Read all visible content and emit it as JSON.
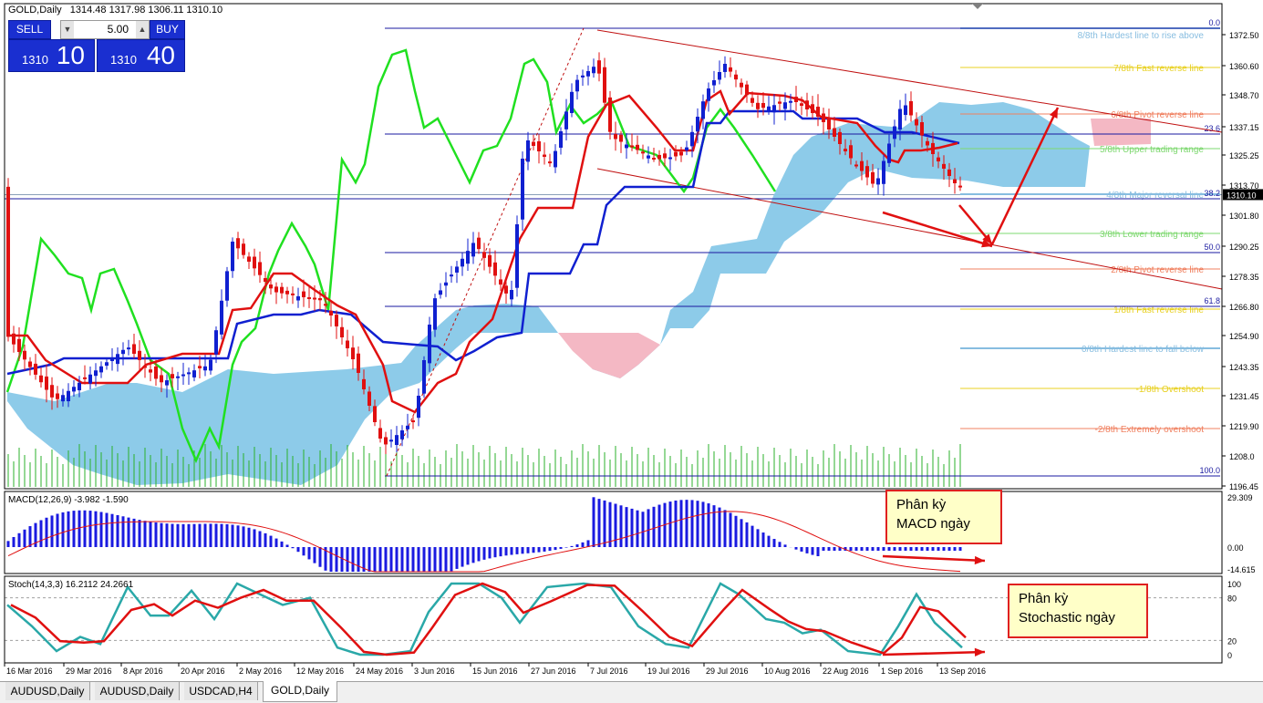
{
  "window": {
    "symbol_header": "GOLD,Daily",
    "ohlc": "1314.48 1317.98 1306.11 1310.10"
  },
  "trade_panel": {
    "sell_label": "SELL",
    "buy_label": "BUY",
    "lot_value": "5.00",
    "sell_price_small": "1310",
    "sell_price_large": "10",
    "buy_price_small": "1310",
    "buy_price_large": "40"
  },
  "price_axis": {
    "ticks": [
      "1372.50",
      "1360.60",
      "1348.70",
      "1337.15",
      "1325.25",
      "1313.70",
      "1301.80",
      "1290.25",
      "1278.35",
      "1266.80",
      "1254.90",
      "1243.35",
      "1231.45",
      "1219.90",
      "1208.0",
      "1196.45"
    ],
    "current_price": "1310.10"
  },
  "murrey": [
    {
      "label": "8/8th Hardest line to rise above",
      "color": "#87bde0"
    },
    {
      "label": "7/8th Fast reverse line",
      "color": "#e8d020"
    },
    {
      "label": "6/8th Pivot reverse line",
      "color": "#f08060"
    },
    {
      "label": "5/8th Upper trading range",
      "color": "#7ed870"
    },
    {
      "label": "4/8th Major reversal line",
      "color": "#87bde0"
    },
    {
      "label": "3/8th Lower trading range",
      "color": "#7ed870"
    },
    {
      "label": "2/8th Pivot reverse line",
      "color": "#f08060"
    },
    {
      "label": "1/8th Fast reverse line",
      "color": "#e8d020"
    },
    {
      "label": "0/8th Hardest line to fall below",
      "color": "#87bde0"
    },
    {
      "label": "-1/8th Overshoot",
      "color": "#e8d020"
    },
    {
      "label": "-2/8th Extremely overshoot",
      "color": "#f08060"
    }
  ],
  "fibo": [
    {
      "label": "0.0"
    },
    {
      "label": "23.6"
    },
    {
      "label": "38.2"
    },
    {
      "label": "50.0"
    },
    {
      "label": "61.8"
    },
    {
      "label": "100.0"
    }
  ],
  "macd": {
    "title": "MACD(12,26,9) -3.982 -1.590",
    "ticks": [
      "29.309",
      "0.00",
      "-14.615"
    ]
  },
  "stoch": {
    "title": "Stoch(14,3,3) 16.2112 24.2661",
    "ticks": [
      "100",
      "80",
      "20",
      "0"
    ]
  },
  "date_axis": [
    "16 Mar 2016",
    "29 Mar 2016",
    "8 Apr 2016",
    "20 Apr 2016",
    "2 May 2016",
    "12 May 2016",
    "24 May 2016",
    "3 Jun 2016",
    "15 Jun 2016",
    "27 Jun 2016",
    "7 Jul 2016",
    "19 Jul 2016",
    "29 Jul 2016",
    "10 Aug 2016",
    "22 Aug 2016",
    "1 Sep 2016",
    "13 Sep 2016"
  ],
  "callouts": {
    "macd_line1": "Phân kỳ",
    "macd_line2": "MACD ngày",
    "stoch_line1": "Phân kỳ",
    "stoch_line2": "Stochastic ngày"
  },
  "tabs": [
    {
      "label": "AUDUSD,Daily"
    },
    {
      "label": "AUDUSD,Daily"
    },
    {
      "label": "USDCAD,H4"
    },
    {
      "label": "GOLD,Daily"
    }
  ],
  "colors": {
    "bull_candle": "#1020d0",
    "bear_candle": "#e01010",
    "tenkan": "#e01010",
    "kijun": "#1020d0",
    "chikou": "#20e020",
    "kumo_bull": "#87c8e8",
    "kumo_bear": "#f4b8c4",
    "macd_hist": "#1a1ae0",
    "macd_signal": "#e01010",
    "stoch_main": "#2aa8a8",
    "stoch_signal": "#e01010"
  }
}
